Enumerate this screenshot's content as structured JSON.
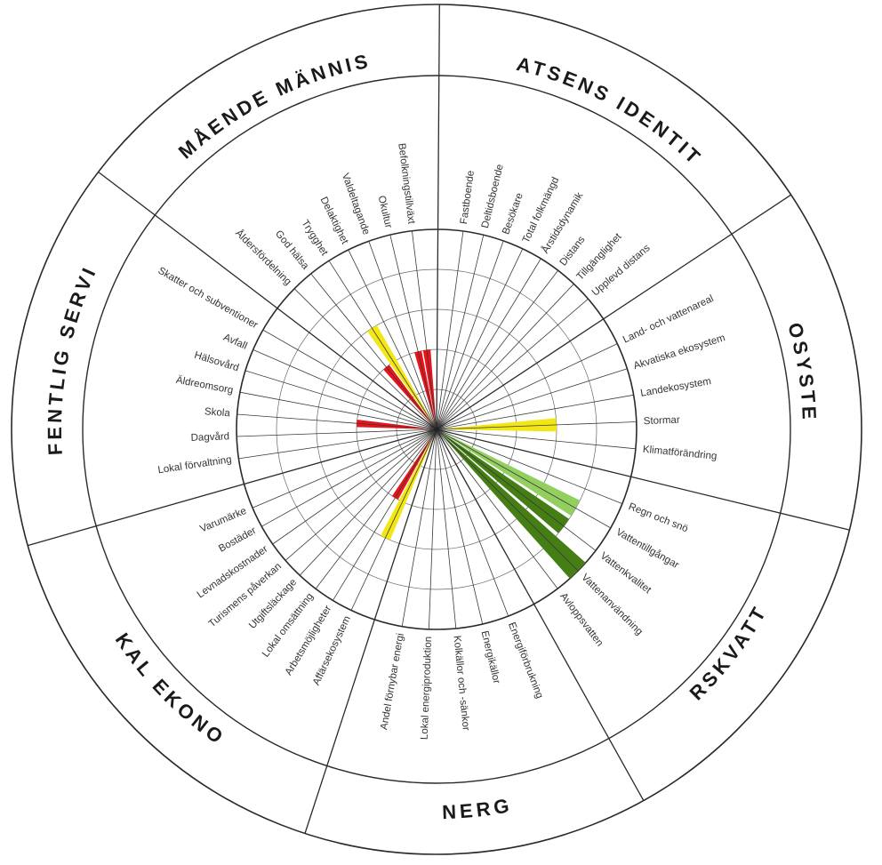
{
  "chart_data": {
    "type": "radial-indicator-wheel",
    "max_level": 5,
    "categories": [
      {
        "name": "PLATSENS IDENTITET",
        "indicators": [
          {
            "label": "Fastboende",
            "level": 0,
            "color": ""
          },
          {
            "label": "Deltidsboende",
            "level": 0,
            "color": ""
          },
          {
            "label": "Besökare",
            "level": 0,
            "color": ""
          },
          {
            "label": "Total folkmängd",
            "level": 0,
            "color": ""
          },
          {
            "label": "Årstidsdynamik",
            "level": 0,
            "color": ""
          },
          {
            "label": "Distans",
            "level": 0,
            "color": ""
          },
          {
            "label": "Tillgänglighet",
            "level": 0,
            "color": ""
          },
          {
            "label": "Upplevd distans",
            "level": 0,
            "color": ""
          }
        ]
      },
      {
        "name": "EKOSYSTEM",
        "indicators": [
          {
            "label": "Land- och vattenareal",
            "level": 0,
            "color": ""
          },
          {
            "label": "Akvatiska ekosystem",
            "level": 0,
            "color": ""
          },
          {
            "label": "Landekosystem",
            "level": 0,
            "color": ""
          },
          {
            "label": "Stormar",
            "level": 3,
            "color": "yellow"
          },
          {
            "label": "Klimatförändring",
            "level": 0,
            "color": ""
          }
        ]
      },
      {
        "name": "FÄRSKVATTEN",
        "indicators": [
          {
            "label": "Regn och snö",
            "level": 0,
            "color": "lightgreen"
          },
          {
            "label": "Vattentillgångar",
            "level": 4,
            "color": "lightgreen"
          },
          {
            "label": "Vattenkvalitet",
            "level": 4,
            "color": "darkgreen"
          },
          {
            "label": "Vattenanvändning",
            "level": 5,
            "color": "darkgreen"
          },
          {
            "label": "Avloppsvatten",
            "level": 0,
            "color": ""
          }
        ]
      },
      {
        "name": "ENERGI",
        "indicators": [
          {
            "label": "Energiförbrukning",
            "level": 0,
            "color": ""
          },
          {
            "label": "Energikällor",
            "level": 0,
            "color": ""
          },
          {
            "label": "Kolkällor och -sänkor",
            "level": 0,
            "color": ""
          },
          {
            "label": "Lokal energiproduktion",
            "level": 0,
            "color": ""
          },
          {
            "label": "Andel förnybar energi",
            "level": 0,
            "color": ""
          }
        ]
      },
      {
        "name": "LOKAL EKONOMI",
        "indicators": [
          {
            "label": "Affärsekosystem",
            "level": 3,
            "color": "yellow"
          },
          {
            "label": "Arbetsmöjligheter",
            "level": 2,
            "color": "red"
          },
          {
            "label": "Lokal omsättning",
            "level": 0,
            "color": ""
          },
          {
            "label": "Utgiftsläckage",
            "level": 0,
            "color": ""
          },
          {
            "label": "Turismens påverkan",
            "level": 0,
            "color": ""
          },
          {
            "label": "Levnadskostnader",
            "level": 0,
            "color": ""
          },
          {
            "label": "Bostäder",
            "level": 0,
            "color": ""
          },
          {
            "label": "Varumärke",
            "level": 0,
            "color": ""
          }
        ]
      },
      {
        "name": "OFFENTLIG SERVICE",
        "indicators": [
          {
            "label": "Lokal förvaltning",
            "level": 0,
            "color": ""
          },
          {
            "label": "Dagvård",
            "level": 0,
            "color": ""
          },
          {
            "label": "Skola",
            "level": 2,
            "color": "red"
          },
          {
            "label": "Äldreomsorg",
            "level": 0,
            "color": ""
          },
          {
            "label": "Hälsovård",
            "level": 0,
            "color": ""
          },
          {
            "label": "Avfall",
            "level": 0,
            "color": ""
          },
          {
            "label": "Skatter och subventioner",
            "level": 0,
            "color": ""
          }
        ]
      },
      {
        "name": "VÄLMÅENDE MÄNNISKOR",
        "indicators": [
          {
            "label": "Åldersfördelning",
            "level": 0,
            "color": ""
          },
          {
            "label": "God hälsa",
            "level": 2,
            "color": "red"
          },
          {
            "label": "Trygghet",
            "level": 3,
            "color": "yellow"
          },
          {
            "label": "Delaktighet",
            "level": 0,
            "color": ""
          },
          {
            "label": "Valdeltagande",
            "level": 0,
            "color": ""
          },
          {
            "label": "Okultur",
            "level": 2,
            "color": "red"
          },
          {
            "label": "Befolkningstillväxt",
            "level": 2,
            "color": "red"
          }
        ]
      }
    ],
    "colors": {
      "red": "#e8141b",
      "yellow": "#f2e614",
      "lightgreen": "#92cf5e",
      "darkgreen": "#447e14",
      "line": "#2a2a2a",
      "grid": "#555555"
    }
  }
}
